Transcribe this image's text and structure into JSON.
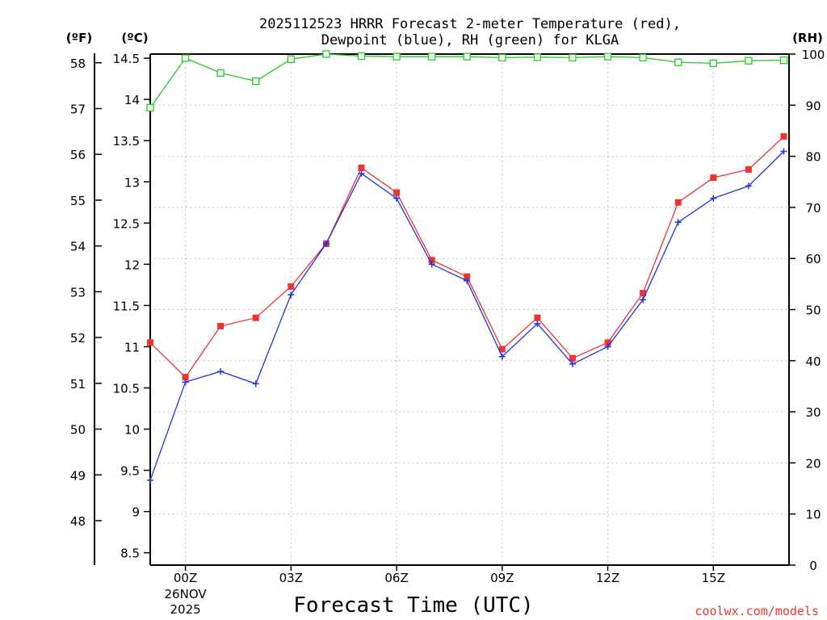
{
  "chart_data": {
    "type": "line",
    "title_line1": "2025112523 HRRR Forecast 2-meter Temperature (red),",
    "title_line2": "Dewpoint (blue), RH (green) for KLGA",
    "xlabel": "Forecast Time (UTC)",
    "credit": "coolwx.com/models",
    "units": {
      "fahrenheit": "(ºF)",
      "celsius": "(ºC)",
      "rh": "(RH)"
    },
    "x_range_hours": [
      -1,
      17.15
    ],
    "celsius_range": [
      8.35,
      14.55
    ],
    "rh_range": [
      0,
      100
    ],
    "x_ticks": [
      {
        "hour": 0,
        "label": "00Z",
        "sub1": "26NOV",
        "sub2": "2025"
      },
      {
        "hour": 3,
        "label": "03Z"
      },
      {
        "hour": 6,
        "label": "06Z"
      },
      {
        "hour": 9,
        "label": "09Z"
      },
      {
        "hour": 12,
        "label": "12Z"
      },
      {
        "hour": 15,
        "label": "15Z"
      }
    ],
    "celsius_ticks": [
      "8.5",
      "9",
      "9.5",
      "10",
      "10.5",
      "11",
      "11.5",
      "12",
      "12.5",
      "13",
      "13.5",
      "14",
      "14.5"
    ],
    "fahrenheit_ticks": [
      "48",
      "49",
      "50",
      "51",
      "52",
      "53",
      "54",
      "55",
      "56",
      "57",
      "58"
    ],
    "rh_ticks": [
      "0",
      "10",
      "20",
      "30",
      "40",
      "50",
      "60",
      "70",
      "80",
      "90",
      "100"
    ],
    "hours": [
      -1,
      0,
      1,
      2,
      3,
      4,
      5,
      6,
      7,
      8,
      9,
      10,
      11,
      12,
      13,
      14,
      15,
      16,
      17
    ],
    "series": [
      {
        "name": "Temperature",
        "unit": "C",
        "color": "#ee3333",
        "marker": "square",
        "values": [
          11.05,
          10.63,
          11.25,
          11.35,
          11.73,
          12.25,
          13.17,
          12.87,
          12.05,
          11.85,
          10.97,
          11.35,
          10.86,
          11.05,
          11.65,
          12.75,
          13.05,
          13.15,
          13.55
        ]
      },
      {
        "name": "Dewpoint",
        "unit": "C",
        "color": "#2233dd",
        "marker": "plus",
        "values": [
          9.38,
          10.57,
          10.7,
          10.55,
          11.63,
          12.25,
          13.1,
          12.8,
          12.0,
          11.8,
          10.88,
          11.28,
          10.79,
          11.0,
          11.57,
          12.51,
          12.8,
          12.95,
          13.37
        ]
      },
      {
        "name": "RH",
        "unit": "%",
        "color": "#22cc22",
        "marker": "open-square",
        "values": [
          89.5,
          99.2,
          96.3,
          94.7,
          99.0,
          100,
          99.6,
          99.5,
          99.5,
          99.5,
          99.3,
          99.4,
          99.3,
          99.5,
          99.3,
          98.4,
          98.2,
          98.7,
          98.8
        ]
      }
    ]
  }
}
